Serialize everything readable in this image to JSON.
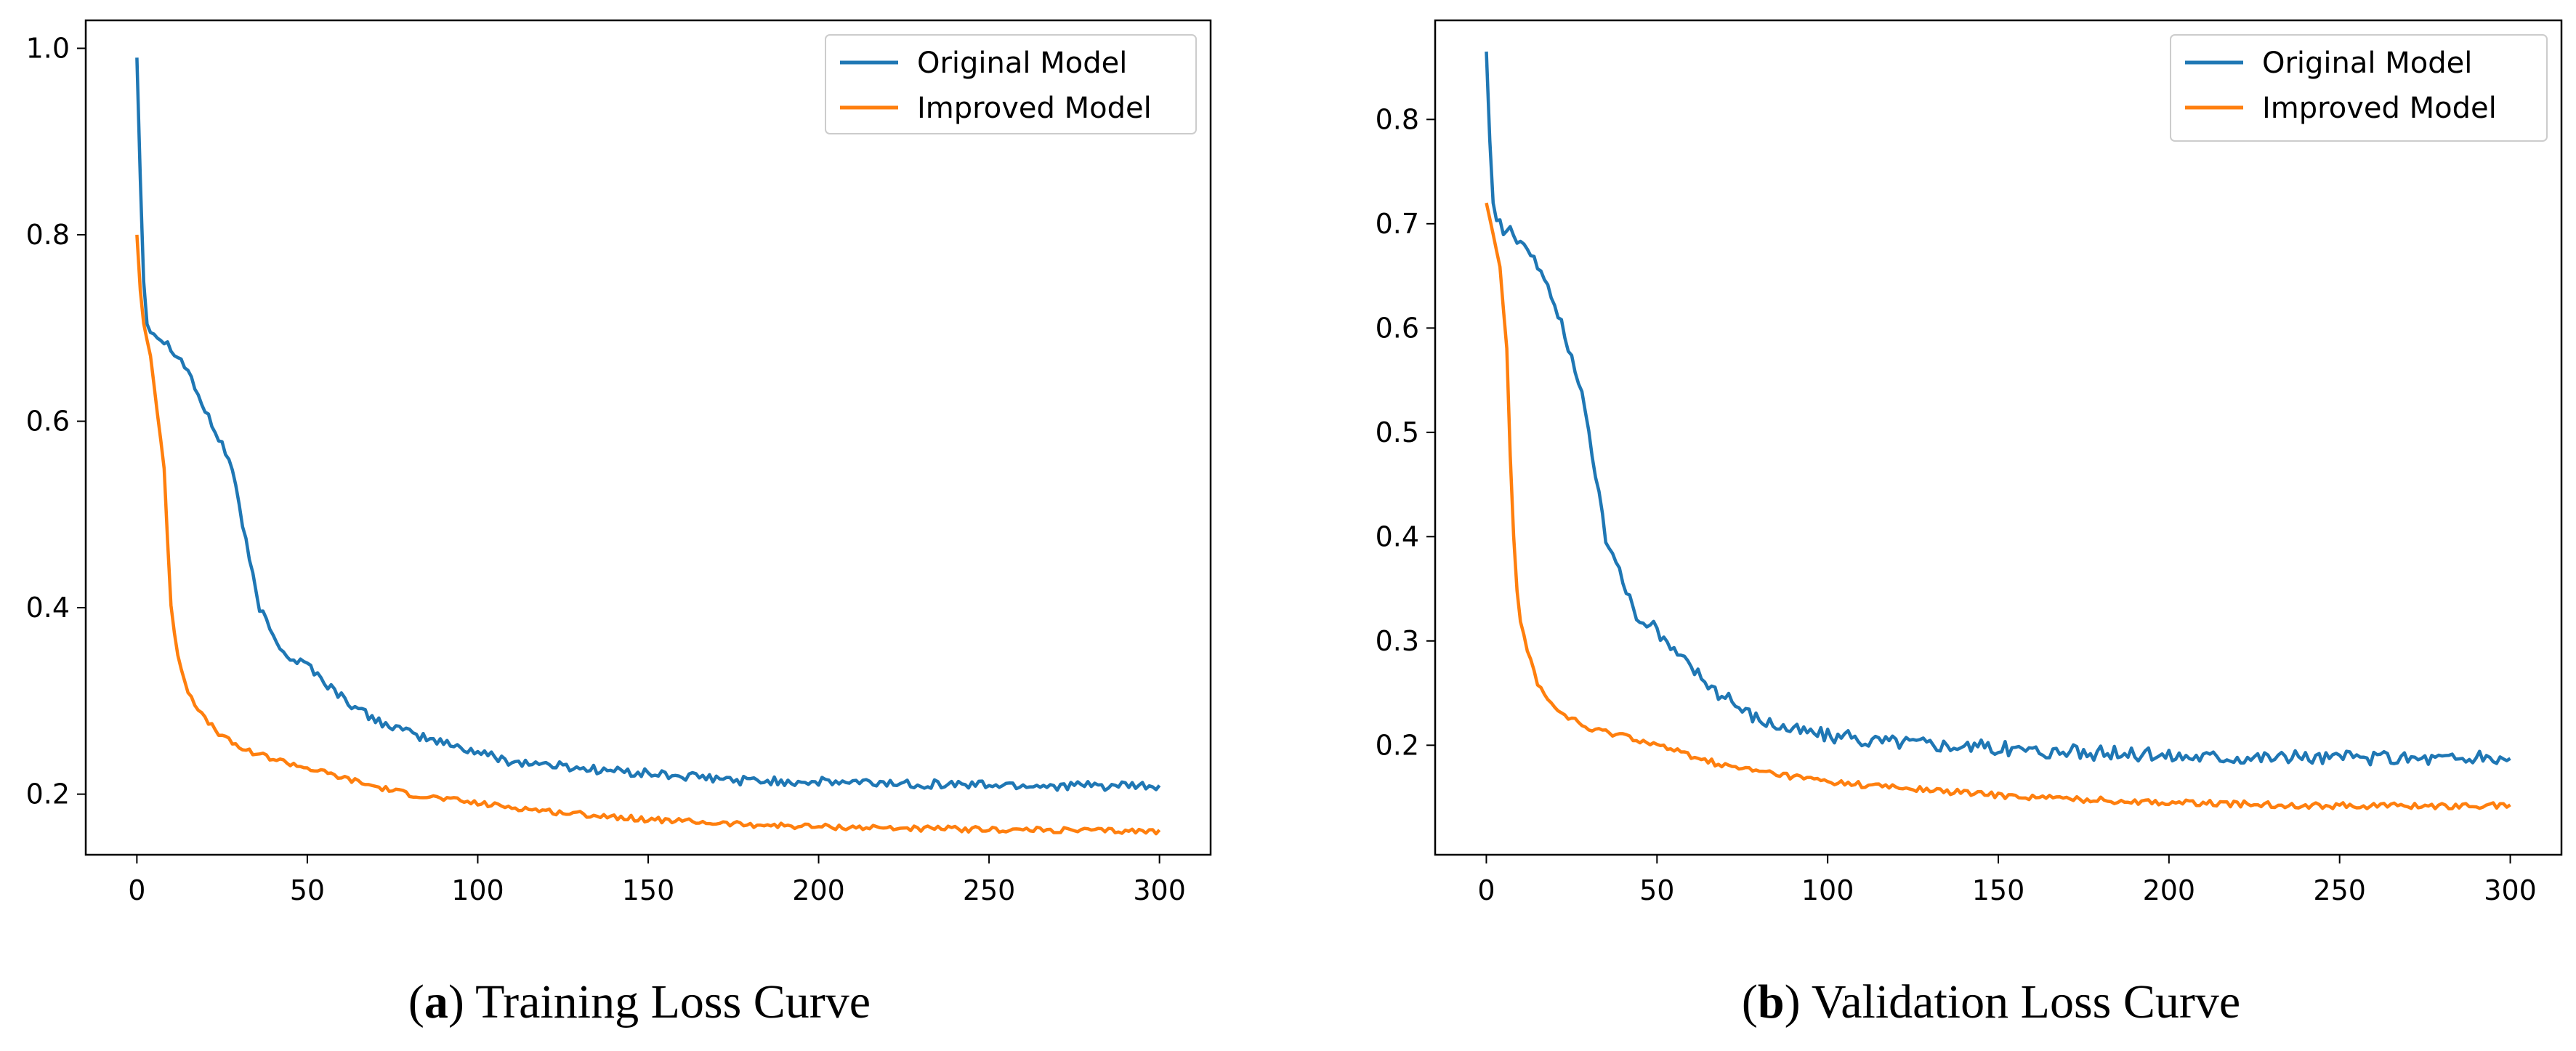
{
  "chart_data": [
    {
      "type": "line",
      "caption_prefix": "(",
      "caption_letter": "a",
      "caption_text": ") Training Loss Curve",
      "xlim": [
        -15,
        315
      ],
      "ylim": [
        0.135,
        1.03
      ],
      "xticks": [
        "0",
        "50",
        "100",
        "150",
        "200",
        "250",
        "300"
      ],
      "yticks": [
        "0.2",
        "0.4",
        "0.6",
        "0.8",
        "1.0"
      ],
      "legend_position": "top-right",
      "series": [
        {
          "name": "Original Model",
          "color": "#1f77b4",
          "noise": 0.005,
          "values": [
            [
              0,
              0.99
            ],
            [
              1,
              0.86
            ],
            [
              2,
              0.75
            ],
            [
              3,
              0.705
            ],
            [
              5,
              0.695
            ],
            [
              10,
              0.68
            ],
            [
              15,
              0.655
            ],
            [
              20,
              0.61
            ],
            [
              25,
              0.575
            ],
            [
              28,
              0.55
            ],
            [
              30,
              0.51
            ],
            [
              33,
              0.45
            ],
            [
              36,
              0.4
            ],
            [
              40,
              0.37
            ],
            [
              45,
              0.345
            ],
            [
              50,
              0.34
            ],
            [
              55,
              0.32
            ],
            [
              60,
              0.305
            ],
            [
              65,
              0.29
            ],
            [
              70,
              0.28
            ],
            [
              80,
              0.265
            ],
            [
              90,
              0.255
            ],
            [
              100,
              0.245
            ],
            [
              110,
              0.235
            ],
            [
              120,
              0.232
            ],
            [
              130,
              0.228
            ],
            [
              140,
              0.225
            ],
            [
              150,
              0.222
            ],
            [
              175,
              0.215
            ],
            [
              200,
              0.213
            ],
            [
              250,
              0.21
            ],
            [
              300,
              0.208
            ]
          ]
        },
        {
          "name": "Improved Model",
          "color": "#ff7f0e",
          "noise": 0.003,
          "values": [
            [
              0,
              0.8
            ],
            [
              1,
              0.74
            ],
            [
              2,
              0.705
            ],
            [
              4,
              0.67
            ],
            [
              6,
              0.61
            ],
            [
              8,
              0.55
            ],
            [
              9,
              0.47
            ],
            [
              10,
              0.4
            ],
            [
              12,
              0.35
            ],
            [
              15,
              0.31
            ],
            [
              20,
              0.28
            ],
            [
              25,
              0.262
            ],
            [
              30,
              0.25
            ],
            [
              40,
              0.238
            ],
            [
              50,
              0.228
            ],
            [
              60,
              0.218
            ],
            [
              70,
              0.208
            ],
            [
              80,
              0.2
            ],
            [
              90,
              0.195
            ],
            [
              100,
              0.19
            ],
            [
              125,
              0.18
            ],
            [
              150,
              0.173
            ],
            [
              175,
              0.168
            ],
            [
              200,
              0.165
            ],
            [
              250,
              0.162
            ],
            [
              300,
              0.16
            ]
          ]
        }
      ]
    },
    {
      "type": "line",
      "caption_prefix": "(",
      "caption_letter": "b",
      "caption_text": ") Validation Loss Curve",
      "xlim": [
        -15,
        315
      ],
      "ylim": [
        0.095,
        0.895
      ],
      "xticks": [
        "0",
        "50",
        "100",
        "150",
        "200",
        "250",
        "300"
      ],
      "yticks": [
        "0.2",
        "0.3",
        "0.4",
        "0.5",
        "0.6",
        "0.7",
        "0.8"
      ],
      "legend_position": "top-right",
      "series": [
        {
          "name": "Original Model",
          "color": "#1f77b4",
          "noise": 0.007,
          "values": [
            [
              0,
              0.865
            ],
            [
              1,
              0.78
            ],
            [
              2,
              0.72
            ],
            [
              3,
              0.705
            ],
            [
              5,
              0.695
            ],
            [
              10,
              0.685
            ],
            [
              15,
              0.66
            ],
            [
              20,
              0.625
            ],
            [
              25,
              0.57
            ],
            [
              28,
              0.54
            ],
            [
              30,
              0.5
            ],
            [
              33,
              0.44
            ],
            [
              35,
              0.4
            ],
            [
              37,
              0.39
            ],
            [
              40,
              0.35
            ],
            [
              45,
              0.32
            ],
            [
              50,
              0.31
            ],
            [
              55,
              0.29
            ],
            [
              60,
              0.275
            ],
            [
              65,
              0.26
            ],
            [
              70,
              0.245
            ],
            [
              80,
              0.225
            ],
            [
              90,
              0.215
            ],
            [
              100,
              0.21
            ],
            [
              110,
              0.205
            ],
            [
              125,
              0.203
            ],
            [
              150,
              0.197
            ],
            [
              175,
              0.193
            ],
            [
              200,
              0.19
            ],
            [
              250,
              0.188
            ],
            [
              300,
              0.187
            ]
          ]
        },
        {
          "name": "Improved Model",
          "color": "#ff7f0e",
          "noise": 0.003,
          "values": [
            [
              0,
              0.72
            ],
            [
              1,
              0.705
            ],
            [
              2,
              0.69
            ],
            [
              4,
              0.66
            ],
            [
              5,
              0.62
            ],
            [
              6,
              0.58
            ],
            [
              7,
              0.48
            ],
            [
              8,
              0.4
            ],
            [
              9,
              0.35
            ],
            [
              10,
              0.32
            ],
            [
              12,
              0.29
            ],
            [
              15,
              0.26
            ],
            [
              20,
              0.235
            ],
            [
              25,
              0.225
            ],
            [
              30,
              0.215
            ],
            [
              40,
              0.21
            ],
            [
              50,
              0.2
            ],
            [
              60,
              0.19
            ],
            [
              70,
              0.18
            ],
            [
              80,
              0.175
            ],
            [
              90,
              0.17
            ],
            [
              100,
              0.165
            ],
            [
              125,
              0.158
            ],
            [
              150,
              0.152
            ],
            [
              175,
              0.148
            ],
            [
              200,
              0.145
            ],
            [
              250,
              0.142
            ],
            [
              300,
              0.142
            ]
          ]
        }
      ]
    }
  ]
}
